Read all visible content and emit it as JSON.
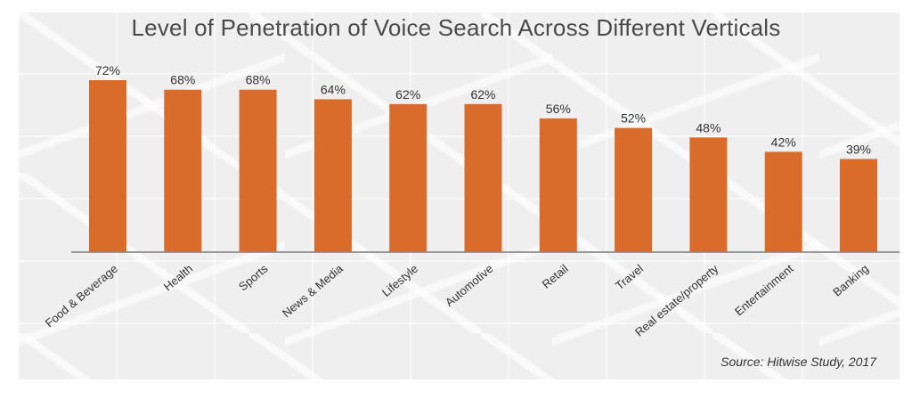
{
  "chart_data": {
    "type": "bar",
    "title": "Level of Penetration of Voice Search Across Different Verticals",
    "categories": [
      "Food & Beverage",
      "Health",
      "Sports",
      "News & Media",
      "Lifestyle",
      "Automotive",
      "Retail",
      "Travel",
      "Real estate/property",
      "Entertainment",
      "Banking"
    ],
    "values": [
      72,
      68,
      68,
      64,
      62,
      62,
      56,
      52,
      48,
      42,
      39
    ],
    "value_labels": [
      "72%",
      "68%",
      "68%",
      "64%",
      "62%",
      "62%",
      "56%",
      "52%",
      "48%",
      "42%",
      "39%"
    ],
    "ylim": [
      0,
      72
    ],
    "grid": false,
    "bar_color": "#d96b2b",
    "source": "Source: Hitwise Study, 2017"
  }
}
